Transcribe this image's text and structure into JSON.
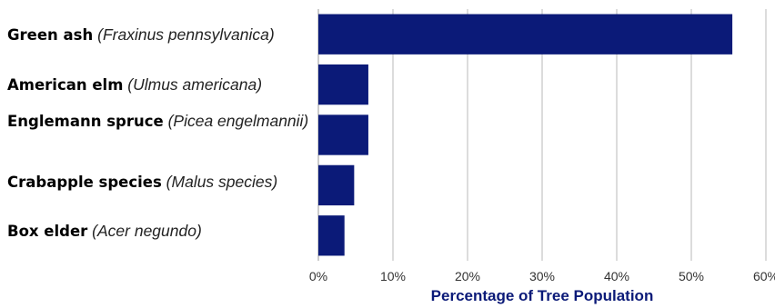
{
  "chart_data": {
    "type": "bar",
    "orientation": "horizontal",
    "categories": [
      {
        "common": "Green ash",
        "scientific": "(Fraxinus pennsylvanica)"
      },
      {
        "common": "American elm",
        "scientific": "(Ulmus americana)"
      },
      {
        "common": "Englemann spruce",
        "scientific": "(Picea engelmannii)"
      },
      {
        "common": "Crabapple species",
        "scientific": "(Malus species)"
      },
      {
        "common": "Box elder",
        "scientific": "(Acer negundo)"
      }
    ],
    "values": [
      55.5,
      6.7,
      6.7,
      4.8,
      3.5
    ],
    "xlabel": "Percentage of Tree Population",
    "xlim": [
      0,
      60
    ],
    "xticks": [
      "0%",
      "10%",
      "20%",
      "30%",
      "40%",
      "50%",
      "60%"
    ],
    "grid": "vertical",
    "bar_color": "#0b1a78",
    "label_color": "#0b1a78"
  }
}
